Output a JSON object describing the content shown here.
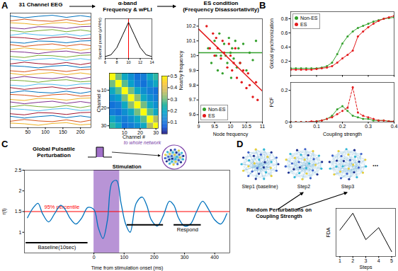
{
  "diagram": {
    "panel_labels": [
      "A",
      "B",
      "C",
      "D"
    ],
    "network_note": "to whole network",
    "steps": [
      "Step1 (baseline)",
      "Step2",
      "Step3"
    ],
    "more": "...",
    "perturbation": "Random Perturbations on Coupling Strength"
  },
  "chart_data": [
    {
      "type": "line",
      "title": "31 Channel EEG",
      "x": [
        0,
        40,
        80,
        120,
        160,
        200,
        230
      ],
      "xlim": [
        0,
        230
      ],
      "xticks": [
        50,
        100,
        150,
        200
      ],
      "ylim": [
        0,
        32
      ],
      "tick_labels": "x",
      "series": [
        {
          "color": "#0072bd",
          "values": [
            31.2,
            30.7,
            31.1,
            31.4,
            30.8,
            31.3,
            30.9
          ]
        },
        {
          "color": "#d95319",
          "values": [
            29.8,
            30.3,
            29.9,
            29.7,
            30.2,
            29.6,
            30.1
          ]
        },
        {
          "color": "#edb120",
          "values": [
            29.3,
            29.1,
            28.7,
            29.2,
            29.4,
            28.8,
            29
          ]
        },
        {
          "color": "#7e2f8e",
          "values": [
            27.9,
            27.6,
            28.2,
            28.1,
            27.7,
            28.2,
            28.3
          ]
        },
        {
          "color": "#77ac30",
          "values": [
            27.2,
            26.7,
            27.1,
            27.4,
            26.8,
            27.3,
            26.9
          ]
        },
        {
          "color": "#4dbeee",
          "values": [
            25.8,
            26.3,
            25.9,
            25.7,
            26.2,
            25.6,
            26.1
          ]
        },
        {
          "color": "#a2142f",
          "values": [
            25.3,
            25.1,
            24.7,
            25.2,
            25.4,
            24.8,
            25
          ]
        },
        {
          "color": "#0072bd",
          "values": [
            23.9,
            23.6,
            24.2,
            24.1,
            23.7,
            24.2,
            24.3
          ]
        },
        {
          "color": "#d95319",
          "values": [
            23.2,
            22.7,
            23.1,
            23.4,
            22.8,
            23.3,
            22.9
          ]
        },
        {
          "color": "#edb120",
          "values": [
            21.8,
            22.3,
            21.9,
            21.7,
            22.2,
            21.6,
            22.1
          ]
        },
        {
          "color": "#7e2f8e",
          "values": [
            21.3,
            21.1,
            20.7,
            21.2,
            21.4,
            20.8,
            21
          ]
        },
        {
          "color": "#77ac30",
          "values": [
            19.9,
            19.6,
            20.2,
            20.1,
            19.7,
            20.2,
            20.3
          ]
        },
        {
          "color": "#4dbeee",
          "values": [
            19.2,
            18.7,
            19.1,
            19.4,
            18.8,
            19.3,
            18.9
          ]
        },
        {
          "color": "#a2142f",
          "values": [
            17.8,
            18.3,
            17.9,
            17.7,
            18.2,
            17.6,
            18.1
          ]
        },
        {
          "color": "#0072bd",
          "values": [
            17.3,
            17.1,
            16.7,
            17.2,
            17.4,
            16.8,
            17
          ]
        },
        {
          "color": "#d95319",
          "values": [
            15.9,
            15.6,
            16.2,
            16.1,
            15.7,
            16.2,
            16.3
          ]
        },
        {
          "color": "#edb120",
          "values": [
            15.2,
            14.7,
            15.1,
            15.4,
            14.8,
            15.3,
            14.9
          ]
        },
        {
          "color": "#7e2f8e",
          "values": [
            13.8,
            14.3,
            13.9,
            13.7,
            14.2,
            13.6,
            14.1
          ]
        },
        {
          "color": "#77ac30",
          "values": [
            13.3,
            13.1,
            12.7,
            13.2,
            13.4,
            12.8,
            13
          ]
        },
        {
          "color": "#4dbeee",
          "values": [
            11.9,
            11.6,
            12.2,
            12.1,
            11.7,
            12.2,
            12.3
          ]
        },
        {
          "color": "#a2142f",
          "values": [
            11.2,
            10.7,
            11.1,
            11.4,
            10.8,
            11.3,
            10.9
          ]
        },
        {
          "color": "#0072bd",
          "values": [
            9.8,
            10.3,
            9.9,
            9.7,
            10.2,
            9.6,
            10.1
          ]
        },
        {
          "color": "#d95319",
          "values": [
            9.3,
            9.1,
            8.7,
            9.2,
            9.4,
            8.8,
            9
          ]
        },
        {
          "color": "#edb120",
          "values": [
            7.9,
            7.6,
            8.2,
            8.1,
            7.7,
            8.2,
            8.3
          ]
        },
        {
          "color": "#7e2f8e",
          "values": [
            7.2,
            6.7,
            7.1,
            7.4,
            6.8,
            7.3,
            6.9
          ]
        },
        {
          "color": "#77ac30",
          "values": [
            5.8,
            6.3,
            5.9,
            5.7,
            6.2,
            5.6,
            6.1
          ]
        },
        {
          "color": "#4dbeee",
          "values": [
            5.3,
            5.1,
            4.7,
            5.2,
            5.4,
            4.8,
            5
          ]
        },
        {
          "color": "#a2142f",
          "values": [
            3.9,
            3.6,
            4.2,
            4.1,
            3.7,
            4.2,
            4.3
          ]
        },
        {
          "color": "#0072bd",
          "values": [
            3.2,
            2.7,
            3.1,
            3.4,
            2.8,
            3.3,
            2.9
          ]
        },
        {
          "color": "#d95319",
          "values": [
            1.8,
            2.3,
            1.9,
            1.7,
            2.2,
            1.6,
            2.1
          ]
        },
        {
          "color": "#edb120",
          "values": [
            1.3,
            1.1,
            0.7,
            1.2,
            1.4,
            0.8,
            1
          ]
        }
      ]
    },
    {
      "type": "line",
      "title": "α-band",
      "subtitle": "Frequency & wPLI",
      "x": [
        6,
        7,
        8,
        9,
        10,
        11,
        12,
        13,
        14
      ],
      "values": [
        0.05,
        0.1,
        0.3,
        0.65,
        1,
        0.65,
        0.3,
        0.1,
        0.05
      ],
      "color": "#000000",
      "ylabel": "Spectral power (μV²/Hz)",
      "xlim": [
        6,
        14
      ],
      "xticks": [
        6,
        8,
        10,
        12,
        14
      ],
      "ylim": [
        0,
        1.1
      ],
      "tick_labels": "x",
      "annotations": [
        {
          "x": 10,
          "color": "#ff0000"
        }
      ]
    },
    {
      "type": "heatmap",
      "xlabel": "Channel #",
      "ylabel": "Channel #",
      "xlim": [
        0.5,
        31.5
      ],
      "ylim": [
        0.5,
        31.5
      ],
      "xticks": [
        10,
        20,
        30
      ],
      "yticks": [
        10,
        20,
        30
      ],
      "x_edges": [
        0.5,
        4.5,
        8.5,
        12.5,
        16.5,
        20.5,
        24.5,
        28.5,
        31.5
      ],
      "y_edges": [
        0.5,
        4.5,
        8.5,
        12.5,
        16.5,
        20.5,
        24.5,
        28.5,
        31.5
      ],
      "cells": [
        [
          0.5,
          0.3,
          0.2,
          0.15,
          0.1,
          0.12,
          0.2,
          0.25
        ],
        [
          0.3,
          0.5,
          0.28,
          0.18,
          0.12,
          0.1,
          0.15,
          0.2
        ],
        [
          0.2,
          0.28,
          0.5,
          0.3,
          0.2,
          0.15,
          0.12,
          0.1
        ],
        [
          0.15,
          0.18,
          0.3,
          0.5,
          0.32,
          0.2,
          0.15,
          0.12
        ],
        [
          0.1,
          0.12,
          0.2,
          0.32,
          0.5,
          0.3,
          0.2,
          0.15
        ],
        [
          0.12,
          0.1,
          0.15,
          0.2,
          0.3,
          0.5,
          0.28,
          0.2
        ],
        [
          0.2,
          0.15,
          0.12,
          0.15,
          0.2,
          0.28,
          0.5,
          0.35
        ],
        [
          0.25,
          0.2,
          0.1,
          0.12,
          0.15,
          0.2,
          0.35,
          0.5
        ]
      ],
      "colorbar": {
        "range": [
          0,
          0.5
        ],
        "ticks": [
          0.1,
          0.2,
          0.3,
          0.4,
          0.5
        ]
      }
    },
    {
      "type": "scatter",
      "title": "ES condition",
      "subtitle": "(Frequency Disassortativity)",
      "xlabel": "Node frequency",
      "ylabel": "Nearby frequency",
      "xlim": [
        9,
        11
      ],
      "xticks": [
        9,
        9.5,
        10,
        10.5,
        11
      ],
      "ylim": [
        9.55,
        10.25
      ],
      "yticks": [
        9.6,
        9.7,
        9.8,
        9.9,
        10,
        10.1,
        10.2
      ],
      "legend": "bottom-left",
      "series": [
        {
          "name": "Non-ES",
          "color": "#33a02c",
          "x": [
            9.3,
            9.4,
            9.5,
            9.55,
            9.6,
            9.65,
            9.7,
            9.75,
            9.8,
            9.85,
            9.9,
            9.95,
            10,
            10.02,
            10.05,
            10.1,
            10.15,
            10.2,
            10.25,
            10.3,
            10.4,
            10.5,
            10.6,
            10.7,
            10.8
          ],
          "values": [
            10.05,
            9.95,
            10.1,
            10.0,
            9.9,
            10.15,
            10.0,
            9.88,
            10.08,
            10.0,
            9.95,
            10.12,
            10.02,
            9.85,
            10.05,
            9.98,
            10.1,
            9.92,
            10.05,
            9.95,
            10.08,
            9.9,
            10.02,
            9.97,
            10.1
          ],
          "trend": {
            "x": [
              9,
              11
            ],
            "values": [
              10.02,
              10.02
            ]
          }
        },
        {
          "name": "ES",
          "color": "#e31a1c",
          "x": [
            9.25,
            9.35,
            9.45,
            9.5,
            9.55,
            9.6,
            9.7,
            9.75,
            9.8,
            9.9,
            9.95,
            10,
            10.05,
            10.1,
            10.15,
            10.2,
            10.3,
            10.35,
            10.4,
            10.5,
            10.55,
            10.6,
            10.7,
            10.8,
            10.85
          ],
          "values": [
            10.2,
            10.05,
            10.15,
            10.0,
            10.12,
            10.05,
            9.98,
            10.1,
            10.02,
            9.92,
            10.08,
            10.0,
            9.9,
            9.95,
            10.05,
            9.85,
            9.95,
            9.82,
            9.9,
            9.78,
            9.88,
            9.8,
            9.72,
            9.82,
            9.7
          ],
          "trend": {
            "x": [
              9,
              11
            ],
            "values": [
              10.18,
              9.76
            ]
          }
        }
      ]
    },
    {
      "type": "line",
      "marker": "circle",
      "ylabel": "Global synchronization",
      "x": [
        0,
        0.02,
        0.04,
        0.06,
        0.08,
        0.1,
        0.12,
        0.14,
        0.16,
        0.18,
        0.2,
        0.22,
        0.24,
        0.26,
        0.28,
        0.3,
        0.32,
        0.34,
        0.36,
        0.38,
        0.4
      ],
      "xlim": [
        0,
        0.4
      ],
      "xticks": [
        0,
        0.1,
        0.2,
        0.3,
        0.4
      ],
      "ylim": [
        0,
        0.9
      ],
      "yticks": [
        0.2,
        0.4,
        0.6,
        0.8
      ],
      "tick_labels": "y",
      "legend": "top-left",
      "series": [
        {
          "name": "Non-ES",
          "color": "#33a02c",
          "values": [
            0.1,
            0.1,
            0.1,
            0.1,
            0.1,
            0.1,
            0.11,
            0.13,
            0.18,
            0.3,
            0.45,
            0.55,
            0.62,
            0.67,
            0.7,
            0.73,
            0.76,
            0.78,
            0.8,
            0.81,
            0.82
          ]
        },
        {
          "name": "ES",
          "color": "#e31a1c",
          "values": [
            0.08,
            0.08,
            0.08,
            0.08,
            0.08,
            0.09,
            0.1,
            0.11,
            0.13,
            0.18,
            0.24,
            0.29,
            0.35,
            0.55,
            0.62,
            0.68,
            0.73,
            0.77,
            0.8,
            0.82,
            0.84
          ]
        }
      ]
    },
    {
      "type": "line",
      "marker": "circle",
      "xlabel": "Coupling strength",
      "ylabel": "PCF",
      "x": [
        0,
        0.02,
        0.04,
        0.06,
        0.08,
        0.1,
        0.12,
        0.14,
        0.16,
        0.18,
        0.2,
        0.22,
        0.24,
        0.26,
        0.28,
        0.3,
        0.32,
        0.34,
        0.36,
        0.38,
        0.4
      ],
      "xlim": [
        0,
        0.4
      ],
      "xticks": [
        0,
        0.1,
        0.2,
        0.3,
        0.4
      ],
      "ylim": [
        0,
        0.25
      ],
      "yticks": [
        0,
        0.2
      ],
      "series": [
        {
          "name": "Non-ES",
          "color": "#33a02c",
          "values": [
            0,
            0,
            0,
            0,
            0,
            0.005,
            0.01,
            0.02,
            0.04,
            0.08,
            0.1,
            0.07,
            0.04,
            0.03,
            0.02,
            0.02,
            0.01,
            0.01,
            0.01,
            0.005,
            0.005
          ]
        },
        {
          "name": "ES",
          "color": "#e31a1c",
          "line_style": "dashed",
          "values": [
            0,
            0,
            0,
            0,
            0.005,
            0.005,
            0.01,
            0.02,
            0.03,
            0.05,
            0.07,
            0.09,
            0.22,
            0.06,
            0.04,
            0.03,
            0.02,
            0.01,
            0.01,
            0.005,
            0.005
          ]
        }
      ]
    },
    {
      "type": "line",
      "title": "Global Pulsatile Perturbation",
      "xlabel": "Time from stimulation onset (ms)",
      "ylabel": "r(t)",
      "color": "#0072bd",
      "x": [
        -220,
        -200,
        -185,
        -170,
        -150,
        -130,
        -110,
        -95,
        -80,
        -60,
        -40,
        -20,
        0,
        15,
        30,
        45,
        60,
        75,
        90,
        105,
        120,
        140,
        160,
        175,
        190,
        210,
        230,
        250,
        265,
        280,
        300,
        320,
        340,
        360,
        380,
        400,
        420,
        440
      ],
      "values": [
        1.35,
        1.6,
        1.7,
        1.45,
        1.25,
        1.45,
        1.65,
        1.55,
        1.35,
        1.2,
        1.35,
        1.6,
        1.55,
        1.1,
        0.85,
        1.3,
        2.2,
        2.25,
        1.7,
        1.2,
        1,
        1.7,
        1.85,
        1.65,
        1.3,
        1.15,
        1.4,
        1.75,
        1.65,
        1.35,
        1.15,
        1.2,
        1.5,
        1.75,
        1.55,
        1.3,
        1.2,
        1.45
      ],
      "xlim": [
        -230,
        450
      ],
      "xticks": [
        0,
        100,
        200,
        300,
        400
      ],
      "ylim": [
        0.5,
        2.5
      ],
      "yticks": [
        1,
        1.5,
        2,
        2.5
      ],
      "annotations": [
        {
          "type": "span",
          "x": [
            0,
            85
          ],
          "color": "#a070c8",
          "text": "Stimulation"
        },
        {
          "type": "hline",
          "y": 1.5,
          "color": "#ff0000",
          "text": "95% percentile"
        },
        {
          "type": "segment",
          "x": [
            -225,
            -20
          ],
          "y": 0.75,
          "color": "#000000",
          "text": "Baseline(10sec)"
        },
        {
          "type": "segment",
          "x": [
            110,
            230
          ],
          "y": 1.18,
          "color": "#000000"
        },
        {
          "type": "segment",
          "x": [
            265,
            355
          ],
          "y": 1.18,
          "color": "#000000",
          "text": "Respond"
        }
      ]
    },
    {
      "type": "line",
      "xlabel": "Steps",
      "ylabel": "FDA",
      "x": [
        1,
        2,
        3,
        4,
        5
      ],
      "values": [
        1.1,
        1.8,
        0.7,
        1.2,
        0.2
      ],
      "color": "#000000",
      "xlim": [
        0.7,
        5.3
      ],
      "xticks": [
        1,
        2,
        3,
        4,
        5
      ],
      "ylim": [
        0,
        2
      ],
      "tick_labels": "x"
    }
  ]
}
